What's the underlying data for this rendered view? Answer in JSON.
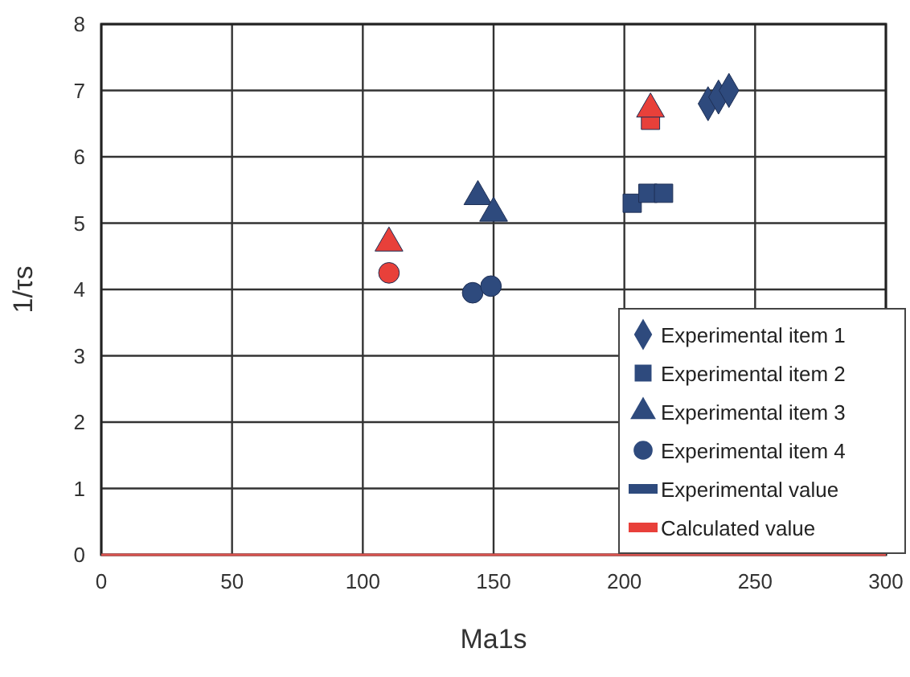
{
  "chart_data": {
    "type": "scatter",
    "xlabel": "Ma1s",
    "ylabel": "1/τs",
    "xlim": [
      0,
      300
    ],
    "ylim": [
      0,
      8
    ],
    "xticks": [
      0,
      50,
      100,
      150,
      200,
      250,
      300
    ],
    "yticks": [
      0,
      1,
      2,
      3,
      4,
      5,
      6,
      7,
      8
    ],
    "grid": true,
    "legend": "bottom right",
    "series": [
      {
        "name": "Experimental item 1",
        "color": "#2e4a7d",
        "marker": "diamond",
        "x": [
          232,
          236,
          240
        ],
        "values": [
          6.8,
          6.9,
          7.0
        ]
      },
      {
        "name": "Experimental item 2",
        "color": "#2e4a7d",
        "marker": "square",
        "x": [
          203,
          209,
          215
        ],
        "values": [
          5.3,
          5.45,
          5.45
        ]
      },
      {
        "name": "Experimental item 3",
        "color": "#2e4a7d",
        "marker": "triangle",
        "x": [
          144,
          150
        ],
        "values": [
          5.4,
          5.15
        ]
      },
      {
        "name": "Experimental item 4",
        "color": "#2e4a7d",
        "marker": "circle",
        "x": [
          142,
          149
        ],
        "values": [
          3.95,
          4.05
        ]
      },
      {
        "name": "Experimental value",
        "type": "line",
        "color": "#2e4a7d"
      },
      {
        "name": "Calculated value",
        "type": "line",
        "color": "#e8403a"
      },
      {
        "color": "#e8403a",
        "marker": "square",
        "x": [
          210
        ],
        "values": [
          6.55
        ]
      },
      {
        "color": "#e8403a",
        "marker": "triangle",
        "x": [
          110,
          210
        ],
        "values": [
          4.7,
          6.72
        ]
      },
      {
        "color": "#e8403a",
        "marker": "circle",
        "x": [
          110
        ],
        "values": [
          4.25
        ]
      }
    ]
  }
}
